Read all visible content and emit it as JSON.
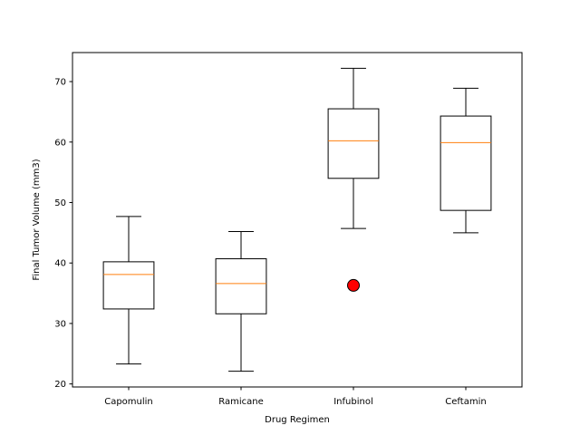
{
  "chart_data": {
    "type": "box",
    "xlabel": "Drug Regimen",
    "ylabel": "Final Tumor Volume (mm3)",
    "ylim": [
      19.5,
      74.8
    ],
    "yticks": [
      20,
      30,
      40,
      50,
      60,
      70
    ],
    "grid": false,
    "categories": [
      "Capomulin",
      "Ramicane",
      "Infubinol",
      "Ceftamin"
    ],
    "boxes": [
      {
        "name": "Capomulin",
        "whisker_low": 23.3,
        "q1": 32.4,
        "median": 38.1,
        "q3": 40.2,
        "whisker_high": 47.7,
        "outliers": []
      },
      {
        "name": "Ramicane",
        "whisker_low": 22.1,
        "q1": 31.6,
        "median": 36.6,
        "q3": 40.7,
        "whisker_high": 45.2,
        "outliers": []
      },
      {
        "name": "Infubinol",
        "whisker_low": 45.7,
        "q1": 54.0,
        "median": 60.2,
        "q3": 65.5,
        "whisker_high": 72.2,
        "outliers": [
          36.3
        ]
      },
      {
        "name": "Ceftamin",
        "whisker_low": 45.0,
        "q1": 48.7,
        "median": 59.9,
        "q3": 64.3,
        "whisker_high": 68.9,
        "outliers": []
      }
    ],
    "colors": {
      "box": "#000000",
      "median": "#ff7f0e",
      "outlier_fill": "#ff0000",
      "outlier_edge": "#000000"
    }
  }
}
